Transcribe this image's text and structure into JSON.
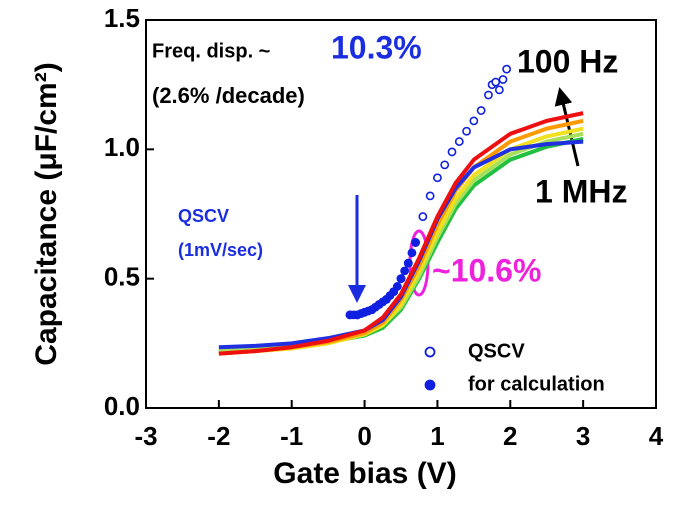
{
  "chart_data": {
    "type": "line",
    "x_label": "Gate bias (V)",
    "y_label": "Capacitance (μF/cm²)",
    "xlim": [
      -3,
      4
    ],
    "ylim": [
      0,
      1.5
    ],
    "xticks": [
      -3,
      -2,
      -1,
      0,
      1,
      2,
      3,
      4
    ],
    "yticks": [
      {
        "value": 0,
        "label": "0.0"
      },
      0.5,
      {
        "value": 1,
        "label": "1.0"
      },
      1.5
    ],
    "x": [
      -2,
      -1.5,
      -1,
      -0.5,
      0,
      0.25,
      0.5,
      0.75,
      1,
      1.25,
      1.5,
      2,
      2.5,
      3
    ],
    "series": [
      {
        "color": "#22c040",
        "values": [
          0.22,
          0.225,
          0.235,
          0.255,
          0.28,
          0.31,
          0.38,
          0.5,
          0.64,
          0.77,
          0.86,
          0.96,
          1.01,
          1.04
        ]
      },
      {
        "color": "#a8e05a",
        "values": [
          0.22,
          0.225,
          0.235,
          0.255,
          0.285,
          0.32,
          0.39,
          0.51,
          0.66,
          0.79,
          0.88,
          0.98,
          1.03,
          1.06
        ]
      },
      {
        "color": "#f0e020",
        "values": [
          0.21,
          0.22,
          0.23,
          0.25,
          0.285,
          0.32,
          0.4,
          0.53,
          0.68,
          0.81,
          0.9,
          1.0,
          1.05,
          1.08
        ]
      },
      {
        "color": "#ff9900",
        "values": [
          0.21,
          0.22,
          0.235,
          0.255,
          0.29,
          0.33,
          0.42,
          0.55,
          0.71,
          0.84,
          0.93,
          1.03,
          1.08,
          1.11
        ]
      },
      {
        "color": "#2030e0",
        "values": [
          0.235,
          0.24,
          0.25,
          0.27,
          0.3,
          0.34,
          0.43,
          0.57,
          0.73,
          0.85,
          0.93,
          1.0,
          1.02,
          1.03
        ]
      },
      {
        "color": "#ee1010",
        "values": [
          0.21,
          0.22,
          0.235,
          0.26,
          0.3,
          0.35,
          0.44,
          0.58,
          0.74,
          0.87,
          0.96,
          1.06,
          1.11,
          1.14
        ]
      }
    ],
    "points": [
      {
        "name": "QSCV",
        "color": "#1020e0",
        "filled": false,
        "x": [
          -0.2,
          -0.1,
          0,
          0.1,
          0.2,
          0.3,
          0.4,
          0.5,
          0.6,
          0.7,
          0.8,
          0.9,
          1.0,
          1.1,
          1.2,
          1.3,
          1.4,
          1.5,
          1.6,
          1.7,
          1.75,
          1.8,
          1.85,
          1.9,
          1.95
        ],
        "values": [
          0.36,
          0.36,
          0.37,
          0.38,
          0.4,
          0.42,
          0.45,
          0.5,
          0.56,
          0.64,
          0.74,
          0.82,
          0.89,
          0.94,
          0.99,
          1.03,
          1.07,
          1.11,
          1.15,
          1.21,
          1.25,
          1.26,
          1.23,
          1.27,
          1.31
        ]
      },
      {
        "name": "for calculation",
        "color": "#1020e0",
        "filled": true,
        "x": [
          -0.2,
          -0.15,
          -0.1,
          -0.05,
          0,
          0.05,
          0.1,
          0.15,
          0.2,
          0.25,
          0.3,
          0.35,
          0.4,
          0.45,
          0.5,
          0.55,
          0.6,
          0.65,
          0.7
        ],
        "values": [
          0.36,
          0.36,
          0.36,
          0.365,
          0.37,
          0.375,
          0.38,
          0.39,
          0.4,
          0.41,
          0.42,
          0.435,
          0.45,
          0.47,
          0.5,
          0.53,
          0.56,
          0.6,
          0.64
        ]
      }
    ],
    "annotations": [
      {
        "text": "Freq. disp. ~",
        "color": "#000000"
      },
      {
        "text": "10.3%",
        "color": "#1a2ee0"
      },
      {
        "text": "(2.6% /decade)",
        "color": "#000000"
      },
      {
        "text": "100 Hz",
        "color": "#000000"
      },
      {
        "text": "1 MHz",
        "color": "#000000"
      },
      {
        "text": "QSCV",
        "color": "#1a2ee0"
      },
      {
        "text": "(1mV/sec)",
        "color": "#1a2ee0"
      },
      {
        "text": "~10.6%",
        "color": "#ee22dd"
      }
    ]
  }
}
